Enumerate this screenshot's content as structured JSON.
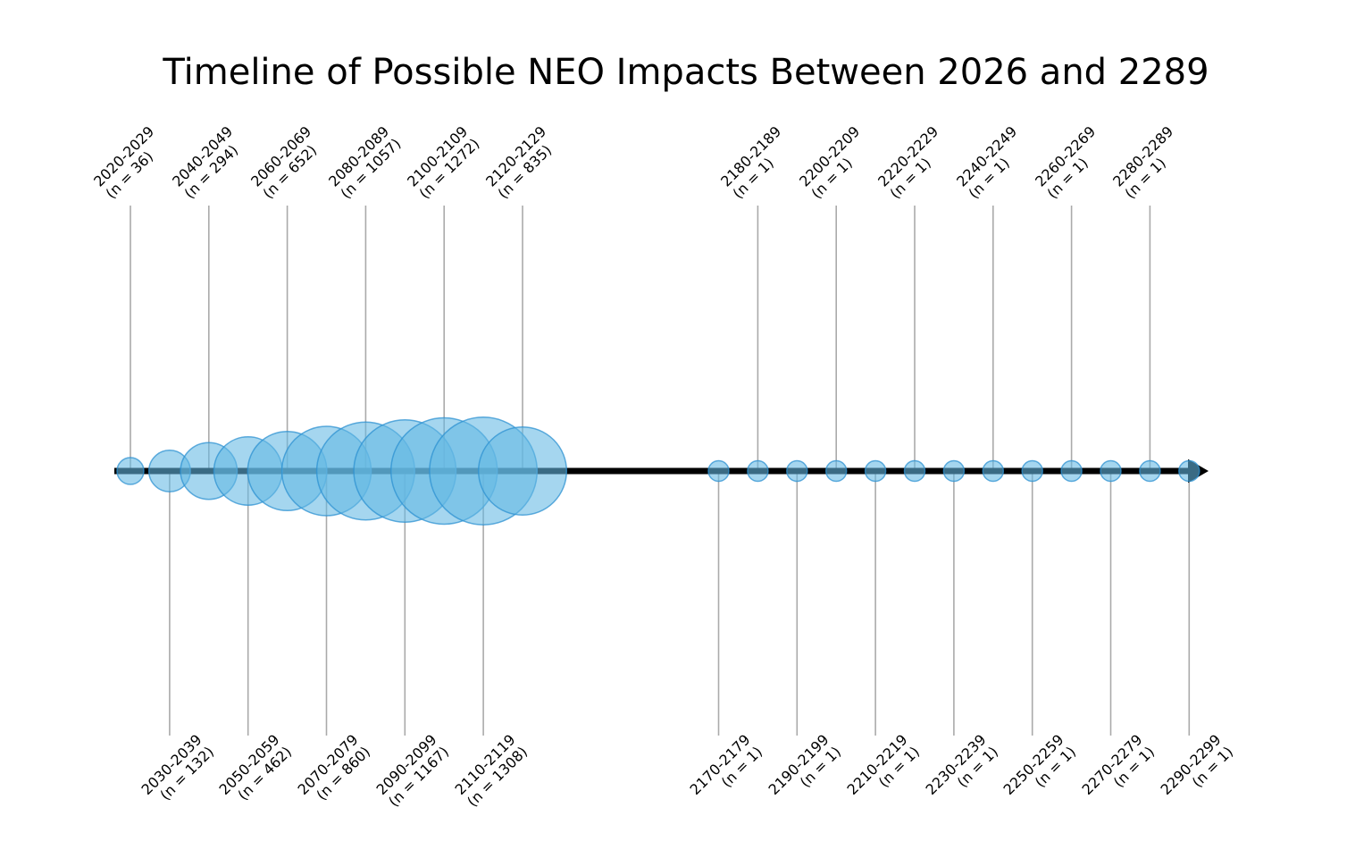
{
  "chart_data": {
    "type": "bubble-timeline",
    "title": "Timeline of Possible NEO Impacts Between 2026 and 2289",
    "size_by": "n (number of possible impacts per decade)",
    "legend": "none",
    "grid": "off",
    "axis": {
      "orientation": "horizontal",
      "first_decade": "2020-2029",
      "last_decade": "2290-2299",
      "arrowhead_at_end": true
    },
    "decades": [
      {
        "range": "2020-2029",
        "n": 36,
        "count_label": "(n = 36)",
        "side": "top"
      },
      {
        "range": "2030-2039",
        "n": 132,
        "count_label": "(n = 132)",
        "side": "bottom"
      },
      {
        "range": "2040-2049",
        "n": 294,
        "count_label": "(n = 294)",
        "side": "top"
      },
      {
        "range": "2050-2059",
        "n": 462,
        "count_label": "(n = 462)",
        "side": "bottom"
      },
      {
        "range": "2060-2069",
        "n": 652,
        "count_label": "(n = 652)",
        "side": "top"
      },
      {
        "range": "2070-2079",
        "n": 860,
        "count_label": "(n = 860)",
        "side": "bottom"
      },
      {
        "range": "2080-2089",
        "n": 1057,
        "count_label": "(n = 1057)",
        "side": "top"
      },
      {
        "range": "2090-2099",
        "n": 1167,
        "count_label": "(n = 1167)",
        "side": "bottom"
      },
      {
        "range": "2100-2109",
        "n": 1272,
        "count_label": "(n = 1272)",
        "side": "top"
      },
      {
        "range": "2110-2119",
        "n": 1308,
        "count_label": "(n = 1308)",
        "side": "bottom"
      },
      {
        "range": "2120-2129",
        "n": 835,
        "count_label": "(n = 835)",
        "side": "top"
      },
      {
        "range": "2170-2179",
        "n": 1,
        "count_label": "(n = 1)",
        "side": "bottom"
      },
      {
        "range": "2180-2189",
        "n": 1,
        "count_label": "(n = 1)",
        "side": "top"
      },
      {
        "range": "2190-2199",
        "n": 1,
        "count_label": "(n = 1)",
        "side": "bottom"
      },
      {
        "range": "2200-2209",
        "n": 1,
        "count_label": "(n = 1)",
        "side": "top"
      },
      {
        "range": "2210-2219",
        "n": 1,
        "count_label": "(n = 1)",
        "side": "bottom"
      },
      {
        "range": "2220-2229",
        "n": 1,
        "count_label": "(n = 1)",
        "side": "top"
      },
      {
        "range": "2230-2239",
        "n": 1,
        "count_label": "(n = 1)",
        "side": "bottom"
      },
      {
        "range": "2240-2249",
        "n": 1,
        "count_label": "(n = 1)",
        "side": "top"
      },
      {
        "range": "2250-2259",
        "n": 1,
        "count_label": "(n = 1)",
        "side": "bottom"
      },
      {
        "range": "2260-2269",
        "n": 1,
        "count_label": "(n = 1)",
        "side": "top"
      },
      {
        "range": "2270-2279",
        "n": 1,
        "count_label": "(n = 1)",
        "side": "bottom"
      },
      {
        "range": "2280-2289",
        "n": 1,
        "count_label": "(n = 1)",
        "side": "top"
      },
      {
        "range": "2290-2299",
        "n": 1,
        "count_label": "(n = 1)",
        "side": "bottom"
      }
    ],
    "colors": {
      "background": "#ffffff",
      "bubble_fill": "#64b8e4",
      "bubble_fill_opacity": 0.58,
      "bubble_stroke": "#2e91d2",
      "bubble_stroke_opacity": 0.75,
      "timeline": "#000000",
      "leader_line": "#aaaaaa",
      "text": "#000000"
    }
  }
}
